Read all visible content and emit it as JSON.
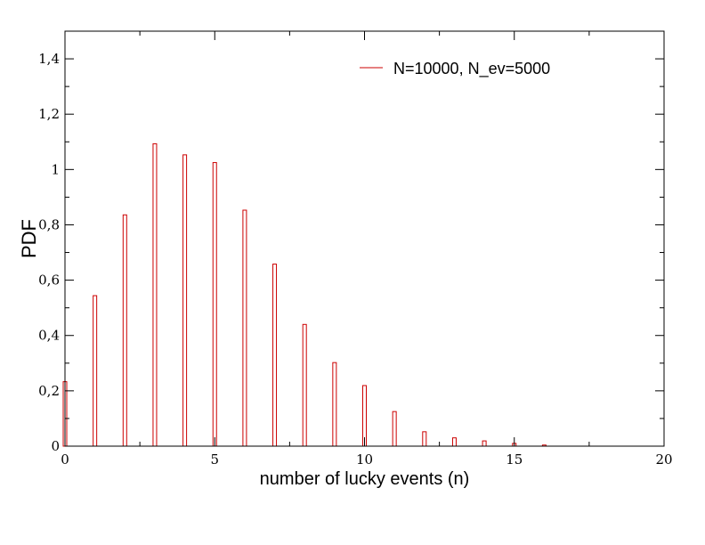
{
  "chart_data": {
    "type": "bar",
    "xlabel": "number of lucky events (n)",
    "ylabel": "PDF",
    "xlim": [
      0,
      20
    ],
    "ylim": [
      0,
      1.5
    ],
    "x_ticks": [
      0,
      5,
      10,
      15,
      20
    ],
    "x_tick_labels": [
      "0",
      "5",
      "10",
      "15",
      "20"
    ],
    "y_ticks": [
      0,
      0.2,
      0.4,
      0.6,
      0.8,
      1.0,
      1.2,
      1.4
    ],
    "y_tick_labels": [
      "0",
      "0,2",
      "0,4",
      "0,6",
      "0,8",
      "1",
      "1,2",
      "1,4"
    ],
    "grid": false,
    "legend_position": "top-right",
    "series": [
      {
        "name": "N=10000, N_ev=5000",
        "color": "#cc0000",
        "x": [
          0,
          1,
          2,
          3,
          4,
          5,
          6,
          7,
          8,
          9,
          10,
          11,
          12,
          13,
          14,
          15,
          16
        ],
        "values": [
          0.233,
          0.544,
          0.836,
          1.093,
          1.053,
          1.025,
          0.853,
          0.658,
          0.44,
          0.302,
          0.219,
          0.125,
          0.052,
          0.03,
          0.019,
          0.01,
          0.004
        ]
      }
    ]
  }
}
